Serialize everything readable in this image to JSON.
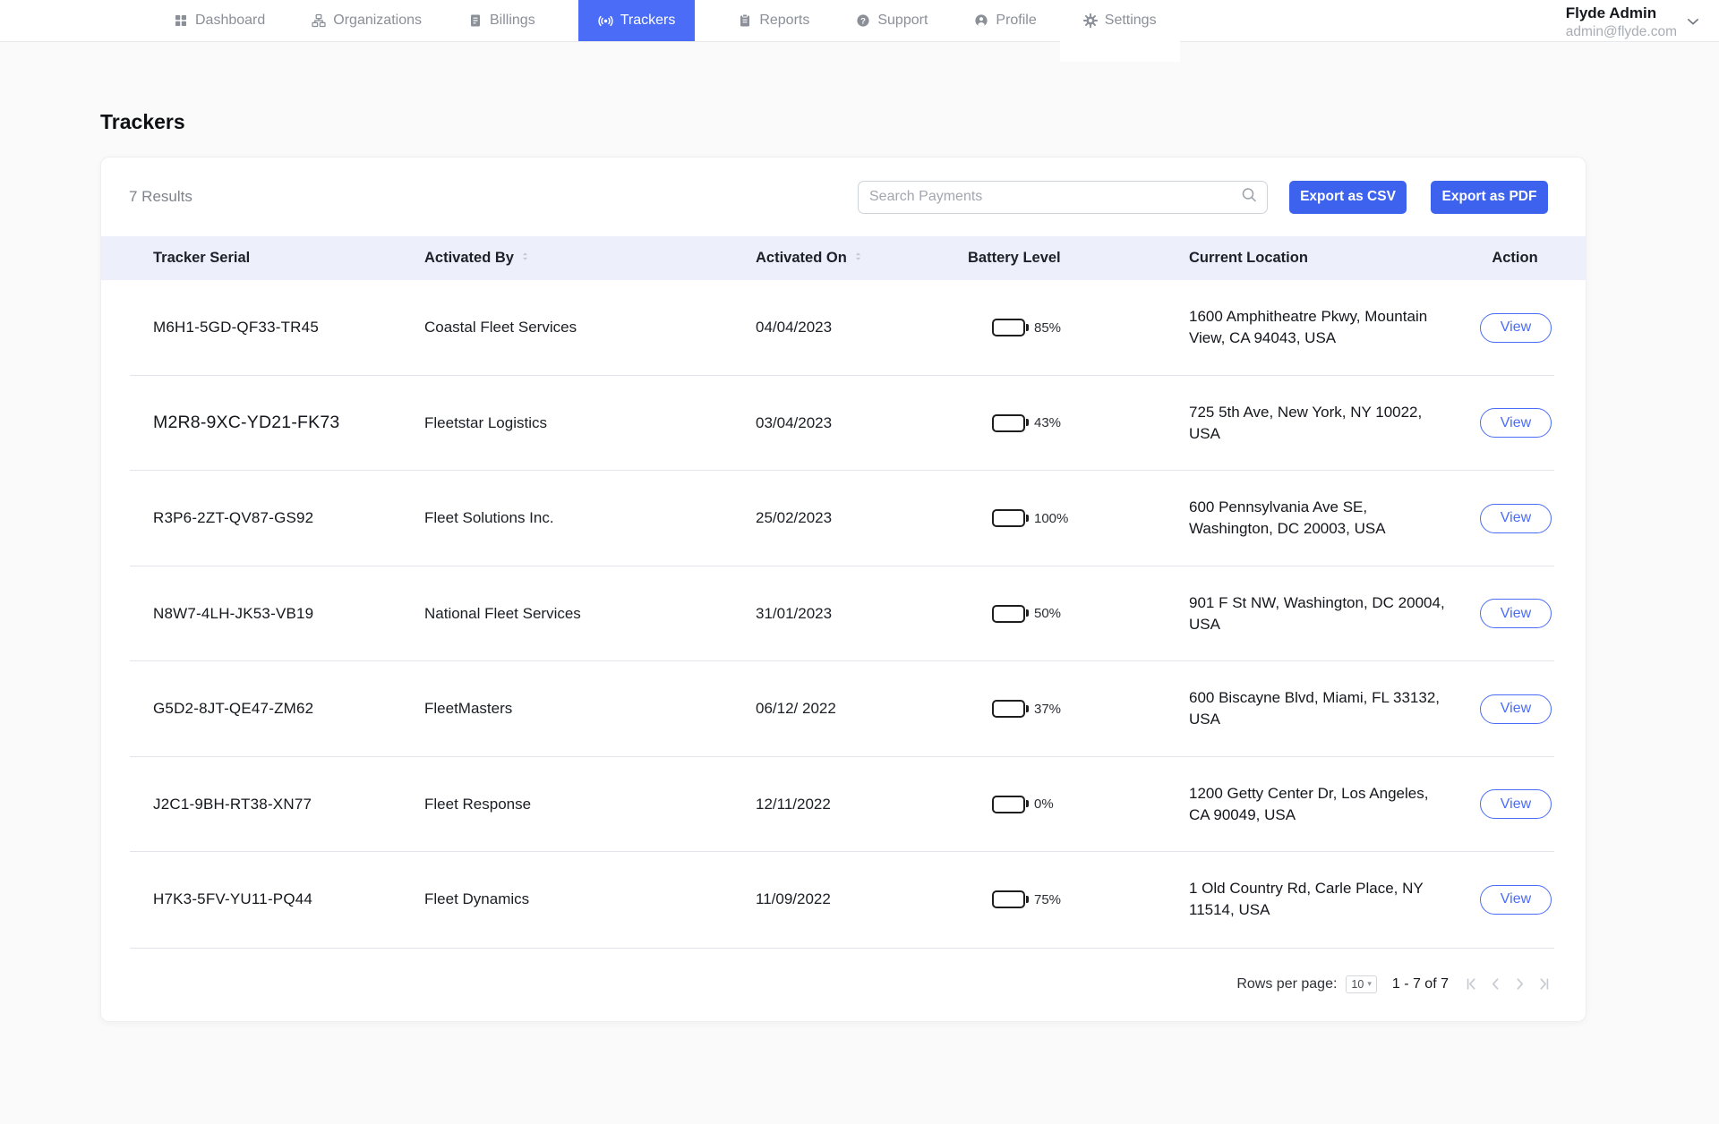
{
  "nav": {
    "items": [
      {
        "label": "Dashboard",
        "icon": "dashboard-icon",
        "active": false
      },
      {
        "label": "Organizations",
        "icon": "organizations-icon",
        "active": false
      },
      {
        "label": "Billings",
        "icon": "billings-icon",
        "active": false
      },
      {
        "label": "Trackers",
        "icon": "trackers-icon",
        "active": true
      },
      {
        "label": "Reports",
        "icon": "reports-icon",
        "active": false
      },
      {
        "label": "Support",
        "icon": "support-icon",
        "active": false
      },
      {
        "label": "Profile",
        "icon": "profile-icon",
        "active": false
      },
      {
        "label": "Settings",
        "icon": "settings-icon",
        "active": false
      }
    ],
    "user": {
      "name": "Flyde Admin",
      "email": "admin@flyde.com"
    }
  },
  "page": {
    "title": "Trackers"
  },
  "toolbar": {
    "results_count": "7 Results",
    "search_placeholder": "Search Payments",
    "export_csv_label": "Export as CSV",
    "export_pdf_label": "Export as PDF"
  },
  "table": {
    "columns": [
      {
        "label": "Tracker Serial",
        "sortable": false
      },
      {
        "label": "Activated By",
        "sortable": true
      },
      {
        "label": "Activated On",
        "sortable": true
      },
      {
        "label": "Battery Level",
        "sortable": false
      },
      {
        "label": "Current Location",
        "sortable": false
      },
      {
        "label": "Action",
        "sortable": false
      }
    ],
    "rows": [
      {
        "serial": "M6H1-5GD-QF33-TR45",
        "activated_by": "Coastal Fleet Services",
        "activated_on": "04/04/2023",
        "battery": {
          "pct": 85,
          "label": "85%",
          "color": "#34B778"
        },
        "location": "1600 Amphitheatre Pkwy, Mountain View, CA 94043, USA",
        "action_label": "View"
      },
      {
        "serial": "M2R8-9XC-YD21-FK73",
        "activated_by": "Fleetstar Logistics",
        "activated_on": "03/04/2023",
        "battery": {
          "pct": 43,
          "label": "43%",
          "color": "#EEF051"
        },
        "location": "725 5th Ave, New York, NY 10022, USA",
        "action_label": "View"
      },
      {
        "serial": "R3P6-2ZT-QV87-GS92",
        "activated_by": "Fleet Solutions Inc.",
        "activated_on": "25/02/2023",
        "battery": {
          "pct": 100,
          "label": "100%",
          "color": "#34B778"
        },
        "location": "600 Pennsylvania Ave SE, Washington, DC 20003, USA",
        "action_label": "View"
      },
      {
        "serial": "N8W7-4LH-JK53-VB19",
        "activated_by": "National Fleet Services",
        "activated_on": "31/01/2023",
        "battery": {
          "pct": 50,
          "label": "50%",
          "color": "#34B778"
        },
        "location": "901 F St NW, Washington, DC 20004, USA",
        "action_label": "View"
      },
      {
        "serial": "G5D2-8JT-QE47-ZM62",
        "activated_by": "FleetMasters",
        "activated_on": "06/12/ 2022",
        "battery": {
          "pct": 37,
          "label": "37%",
          "color": "#EEF051"
        },
        "location": "600 Biscayne Blvd, Miami, FL 33132, USA",
        "action_label": "View"
      },
      {
        "serial": "J2C1-9BH-RT38-XN77",
        "activated_by": "Fleet Response",
        "activated_on": "12/11/2022",
        "battery": {
          "pct": 0,
          "label": "0%",
          "color": "#E03A3A"
        },
        "location": "1200 Getty Center Dr, Los Angeles, CA 90049, USA",
        "action_label": "View"
      },
      {
        "serial": "H7K3-5FV-YU11-PQ44",
        "activated_by": "Fleet Dynamics",
        "activated_on": "11/09/2022",
        "battery": {
          "pct": 75,
          "label": "75%",
          "color": "#34B778"
        },
        "location": "1 Old Country Rd, Carle Place, NY 11514, USA",
        "action_label": "View"
      }
    ]
  },
  "pagination": {
    "rows_per_page_label": "Rows per page:",
    "rows_per_page_value": "10",
    "range_label": "1 - 7 of 7"
  },
  "colors": {
    "accent": "#4A6CF7",
    "export_button": "#3D63EE",
    "table_header_bg": "#EDF0FA",
    "battery_green": "#34B778",
    "battery_yellow": "#EEF051",
    "battery_red": "#E03A3A"
  }
}
